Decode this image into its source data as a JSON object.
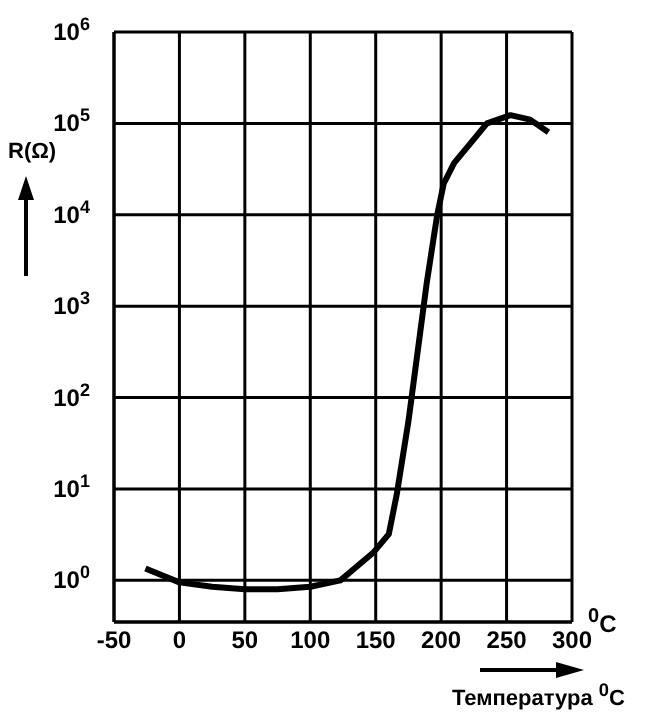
{
  "chart_data": {
    "type": "line",
    "ylabel": "R(Ω)",
    "xlabel": "Температура $^{0}$C",
    "annotations": [
      "$^{0}$C"
    ],
    "x": [
      -26,
      0,
      25,
      50,
      75,
      100,
      123,
      148,
      160,
      166,
      175,
      181,
      189,
      197,
      202,
      210,
      220,
      235,
      253,
      268,
      282
    ],
    "series": [
      {
        "color": "#000000",
        "values": [
          1.35,
          0.95,
          0.85,
          0.8,
          0.8,
          0.85,
          1.0,
          2.0,
          3.2,
          8.6,
          55,
          245,
          1800,
          10000,
          22000,
          37000,
          55000,
          100000,
          123000,
          110000,
          80000
        ]
      }
    ],
    "xlim": [
      -50,
      300
    ],
    "xticks": [
      -50,
      0,
      50,
      100,
      150,
      200,
      250,
      300
    ],
    "ylim": [
      0.35,
      1000000
    ],
    "yticks": [
      {
        "value": 1,
        "label": "10$^{0}$"
      },
      {
        "value": 10,
        "label": "10$^{1}$"
      },
      {
        "value": 100,
        "label": "10$^{2}$"
      },
      {
        "value": 1000,
        "label": "10$^{3}$"
      },
      {
        "value": 10000,
        "label": "10$^{4}$"
      },
      {
        "value": 100000,
        "label": "10$^{5}$"
      },
      {
        "value": 1000000,
        "label": "10$^{6}$"
      }
    ],
    "log": "y",
    "grid": true
  }
}
